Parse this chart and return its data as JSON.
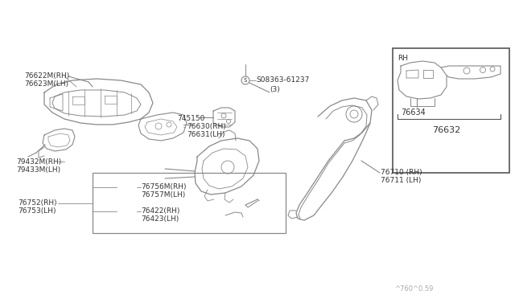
{
  "bg_color": "#ffffff",
  "line_color": "#888888",
  "text_color": "#333333",
  "fig_width": 6.4,
  "fig_height": 3.72,
  "dpi": 100,
  "footer_text": "^760^0.59",
  "inset_label_rh": "RH",
  "inset_part1": "76634",
  "inset_part2": "76632"
}
